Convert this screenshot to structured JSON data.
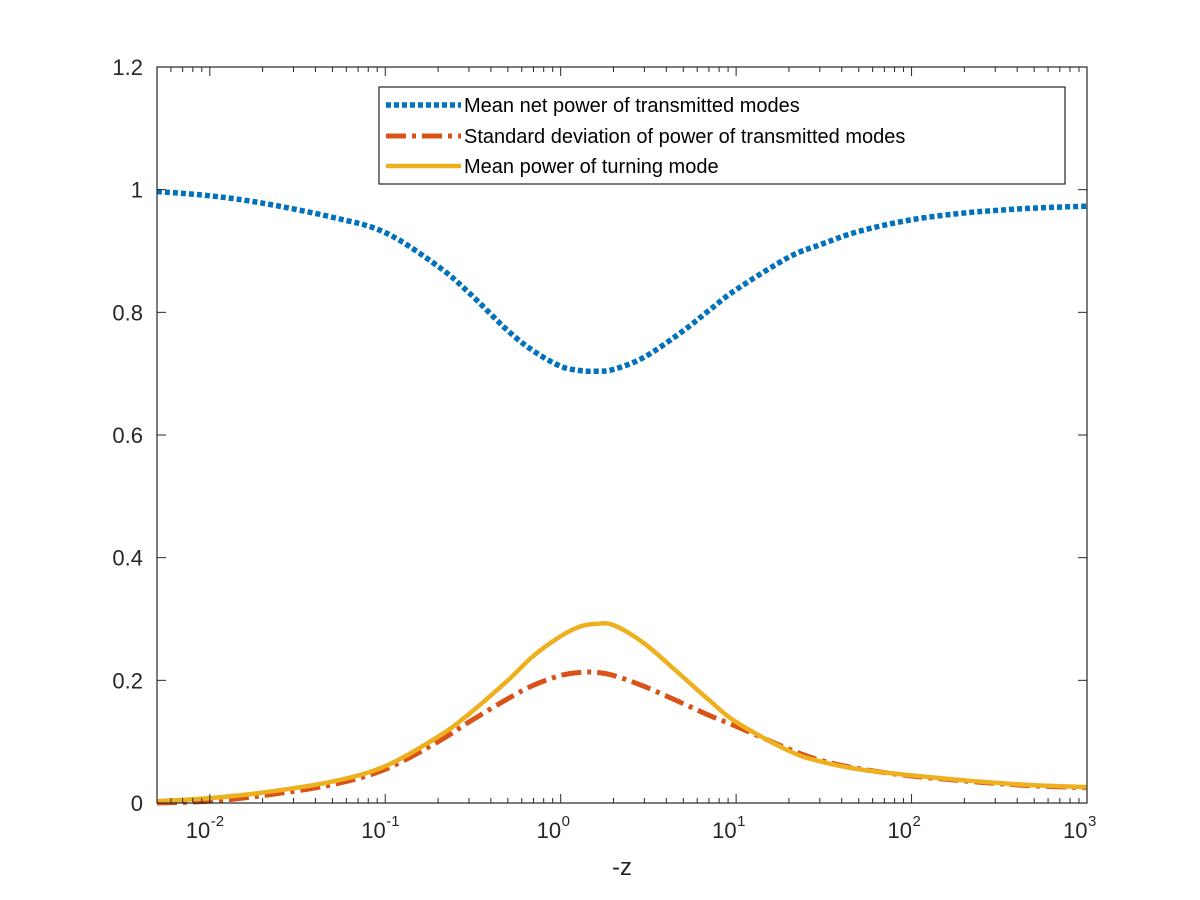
{
  "chart_data": {
    "type": "line",
    "title": "",
    "xlabel": "-z",
    "ylabel": "",
    "xscale": "log",
    "xlim": [
      0.005,
      1000
    ],
    "ylim": [
      0,
      1.2
    ],
    "grid": false,
    "legend_position": "top-right",
    "x_ticks": [
      {
        "value": 0.01,
        "base": "10",
        "exp": "-2"
      },
      {
        "value": 0.1,
        "base": "10",
        "exp": "-1"
      },
      {
        "value": 1,
        "base": "10",
        "exp": "0"
      },
      {
        "value": 10,
        "base": "10",
        "exp": "1"
      },
      {
        "value": 100,
        "base": "10",
        "exp": "2"
      },
      {
        "value": 1000,
        "base": "10",
        "exp": "3"
      }
    ],
    "y_ticks": [
      {
        "value": 0,
        "label": "0"
      },
      {
        "value": 0.2,
        "label": "0.2"
      },
      {
        "value": 0.4,
        "label": "0.4"
      },
      {
        "value": 0.6,
        "label": "0.6"
      },
      {
        "value": 0.8,
        "label": "0.8"
      },
      {
        "value": 1.0,
        "label": "1"
      },
      {
        "value": 1.2,
        "label": "1.2"
      }
    ],
    "x": [
      0.005,
      0.01,
      0.02,
      0.05,
      0.1,
      0.2,
      0.3,
      0.5,
      0.7,
      1,
      1.3,
      1.6,
      2,
      3,
      5,
      7,
      10,
      20,
      30,
      50,
      100,
      200,
      300,
      500,
      1000
    ],
    "series": [
      {
        "name": "Mean net power of transmitted modes",
        "color": "#0072BD",
        "style": "dotted",
        "values": [
          0.997,
          0.99,
          0.978,
          0.955,
          0.93,
          0.875,
          0.832,
          0.77,
          0.737,
          0.712,
          0.705,
          0.704,
          0.707,
          0.727,
          0.77,
          0.803,
          0.837,
          0.89,
          0.91,
          0.932,
          0.951,
          0.962,
          0.966,
          0.97,
          0.973
        ]
      },
      {
        "name": "Standard deviation of power of transmitted modes",
        "color": "#D95319",
        "style": "dashdot",
        "values": [
          0.0,
          0.003,
          0.012,
          0.03,
          0.055,
          0.1,
          0.132,
          0.17,
          0.192,
          0.208,
          0.213,
          0.213,
          0.208,
          0.19,
          0.162,
          0.143,
          0.125,
          0.088,
          0.07,
          0.056,
          0.044,
          0.036,
          0.032,
          0.028,
          0.025
        ]
      },
      {
        "name": "Mean power of turning mode",
        "color": "#EDB120",
        "style": "solid",
        "values": [
          0.003,
          0.008,
          0.017,
          0.035,
          0.06,
          0.108,
          0.145,
          0.2,
          0.24,
          0.272,
          0.288,
          0.292,
          0.29,
          0.26,
          0.205,
          0.168,
          0.132,
          0.085,
          0.068,
          0.055,
          0.045,
          0.037,
          0.033,
          0.029,
          0.026
        ]
      }
    ]
  }
}
